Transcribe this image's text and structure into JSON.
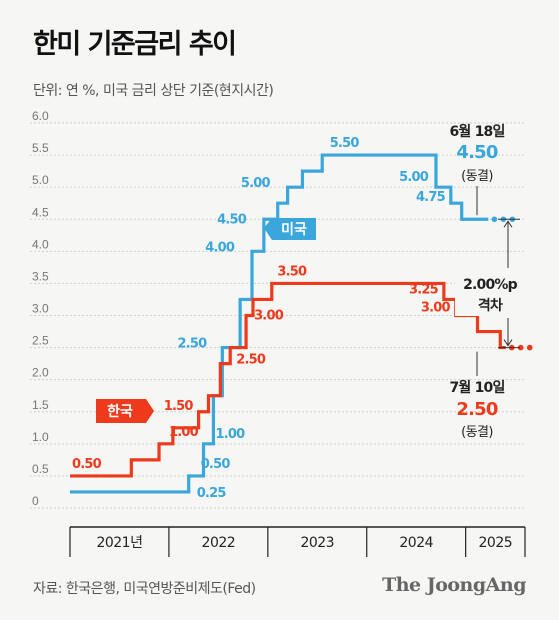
{
  "header": {
    "title": "한미 기준금리 추이",
    "subtitle": "단위: 연 %, 미국 금리 상단 기준(현지시간)"
  },
  "footer": {
    "source": "자료: 한국은행, 미국연방준비제도(Fed)",
    "brand": "The JoongAng"
  },
  "colors": {
    "us": "#3aa6dc",
    "kr": "#ee3a1c"
  },
  "chart_data": {
    "type": "line",
    "step": true,
    "title": "한미 기준금리 추이",
    "ylabel": "단위: 연 %",
    "ylim": [
      0,
      6.0
    ],
    "yticks": [
      "0",
      "0.5",
      "1.0",
      "1.5",
      "2.0",
      "2.5",
      "3.0",
      "3.5",
      "4.0",
      "4.5",
      "5.0",
      "5.5",
      "6.0"
    ],
    "x_categories": [
      "2021년",
      "2022",
      "2023",
      "2024",
      "2025"
    ],
    "x_range": [
      2021.0,
      2025.6
    ],
    "grid": true,
    "series": [
      {
        "name": "미국",
        "color": "#3aa6dc",
        "points": [
          [
            2021.0,
            0.25
          ],
          [
            2022.2,
            0.5
          ],
          [
            2022.35,
            1.0
          ],
          [
            2022.45,
            1.75
          ],
          [
            2022.54,
            2.5
          ],
          [
            2022.72,
            3.25
          ],
          [
            2022.84,
            4.0
          ],
          [
            2022.96,
            4.5
          ],
          [
            2023.1,
            4.75
          ],
          [
            2023.2,
            5.0
          ],
          [
            2023.35,
            5.25
          ],
          [
            2023.55,
            5.5
          ],
          [
            2024.7,
            5.0
          ],
          [
            2024.85,
            4.75
          ],
          [
            2024.96,
            4.5
          ],
          [
            2025.45,
            4.5
          ]
        ],
        "end_style": "dotted",
        "labels": [
          {
            "x": 2022.2,
            "y": 0.25,
            "text": "0.25"
          },
          {
            "x": 2022.2,
            "y": 0.5,
            "text": "0.50"
          },
          {
            "x": 2022.35,
            "y": 1.0,
            "text": "1.00"
          },
          {
            "x": 2022.45,
            "y": 2.5,
            "text": "2.50"
          },
          {
            "x": 2022.72,
            "y": 4.0,
            "text": "4.00"
          },
          {
            "x": 2022.84,
            "y": 4.5,
            "text": "4.50"
          },
          {
            "x": 2023.1,
            "y": 5.0,
            "text": "5.00"
          },
          {
            "x": 2023.55,
            "y": 5.5,
            "text": "5.50"
          },
          {
            "x": 2024.7,
            "y": 5.0,
            "text": "5.00"
          },
          {
            "x": 2024.85,
            "y": 4.75,
            "text": "4.75"
          }
        ]
      },
      {
        "name": "한국",
        "color": "#ee3a1c",
        "points": [
          [
            2021.0,
            0.5
          ],
          [
            2021.62,
            0.75
          ],
          [
            2021.9,
            1.0
          ],
          [
            2022.04,
            1.25
          ],
          [
            2022.3,
            1.5
          ],
          [
            2022.4,
            1.75
          ],
          [
            2022.52,
            2.25
          ],
          [
            2022.62,
            2.5
          ],
          [
            2022.78,
            3.0
          ],
          [
            2022.85,
            3.25
          ],
          [
            2023.04,
            3.5
          ],
          [
            2024.78,
            3.25
          ],
          [
            2024.9,
            3.0
          ],
          [
            2025.12,
            2.75
          ],
          [
            2025.35,
            2.5
          ],
          [
            2025.45,
            2.5
          ]
        ],
        "end_style": "dotted",
        "labels": [
          {
            "x": 2021.0,
            "y": 0.5,
            "text": "0.50"
          },
          {
            "x": 2021.9,
            "y": 1.0,
            "text": "1.00"
          },
          {
            "x": 2022.3,
            "y": 1.5,
            "text": "1.50"
          },
          {
            "x": 2022.62,
            "y": 2.5,
            "text": "2.50"
          },
          {
            "x": 2022.78,
            "y": 3.0,
            "text": "3.00"
          },
          {
            "x": 2023.04,
            "y": 3.5,
            "text": "3.50"
          },
          {
            "x": 2024.78,
            "y": 3.25,
            "text": "3.25"
          },
          {
            "x": 2024.9,
            "y": 3.0,
            "text": "3.00"
          }
        ]
      }
    ],
    "annotations": {
      "us_tag": "미국",
      "kr_tag": "한국",
      "us_date": "6월 18일",
      "us_value": "4.50",
      "us_status": "(동결)",
      "kr_date": "7월 10일",
      "kr_value": "2.50",
      "kr_status": "(동결)",
      "gap_value": "2.00%p",
      "gap_label": "격차"
    }
  }
}
